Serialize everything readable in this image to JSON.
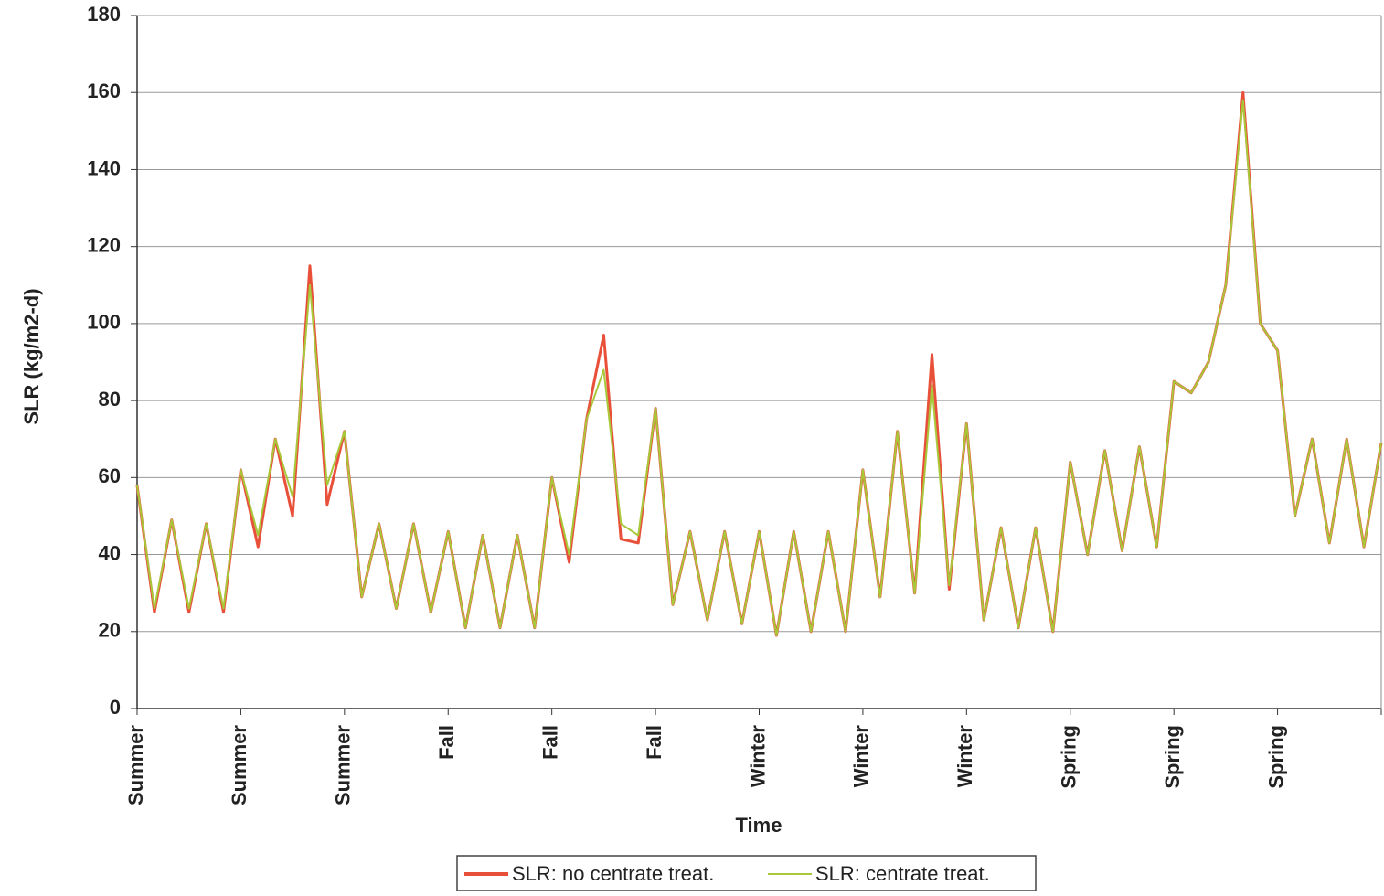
{
  "chart_data": {
    "type": "line",
    "y_label": "SLR (kg/m2-d)",
    "x_label": "Time",
    "categories": [
      "Summer",
      null,
      null,
      null,
      null,
      null,
      "Summer",
      null,
      null,
      null,
      null,
      null,
      "Summer",
      null,
      null,
      null,
      null,
      null,
      "Fall",
      null,
      null,
      null,
      null,
      null,
      "Fall",
      null,
      null,
      null,
      null,
      null,
      "Fall",
      null,
      null,
      null,
      null,
      null,
      "Winter",
      null,
      null,
      null,
      null,
      null,
      "Winter",
      null,
      null,
      null,
      null,
      null,
      "Winter",
      null,
      null,
      null,
      null,
      null,
      "Spring",
      null,
      null,
      null,
      null,
      null,
      "Spring",
      null,
      null,
      null,
      null,
      null,
      "Spring",
      null,
      null,
      null,
      null,
      null,
      null
    ],
    "series": [
      {
        "name": "SLR: no centrate treat.",
        "color": "#e8503a",
        "values": [
          58,
          25,
          49,
          25,
          48,
          25,
          62,
          42,
          70,
          50,
          115,
          53,
          72,
          29,
          48,
          26,
          48,
          25,
          46,
          21,
          45,
          21,
          45,
          21,
          60,
          38,
          75,
          97,
          44,
          43,
          78,
          27,
          46,
          23,
          46,
          22,
          46,
          19,
          46,
          20,
          46,
          20,
          62,
          29,
          72,
          30,
          92,
          31,
          74,
          23,
          47,
          21,
          47,
          20,
          64,
          40,
          67,
          41,
          68,
          42,
          85,
          82,
          90,
          110,
          160,
          100,
          93,
          50,
          70,
          43,
          70,
          42,
          69
        ]
      },
      {
        "name": "SLR: centrate treat.",
        "color": "#a8c83a",
        "values": [
          58,
          26,
          49,
          26,
          48,
          26,
          62,
          45,
          70,
          55,
          110,
          58,
          72,
          29,
          48,
          26,
          48,
          25,
          46,
          21,
          45,
          21,
          45,
          21,
          60,
          40,
          75,
          88,
          48,
          45,
          78,
          27,
          46,
          23,
          46,
          22,
          46,
          19,
          46,
          20,
          46,
          20,
          62,
          29,
          72,
          30,
          84,
          32,
          74,
          23,
          47,
          21,
          47,
          20,
          64,
          40,
          67,
          41,
          68,
          42,
          85,
          82,
          90,
          110,
          158,
          100,
          93,
          50,
          70,
          43,
          70,
          42,
          69
        ]
      }
    ],
    "ylim": [
      0,
      180
    ],
    "yticks": [
      0,
      20,
      40,
      60,
      80,
      100,
      120,
      140,
      160,
      180
    ],
    "grid": true
  }
}
